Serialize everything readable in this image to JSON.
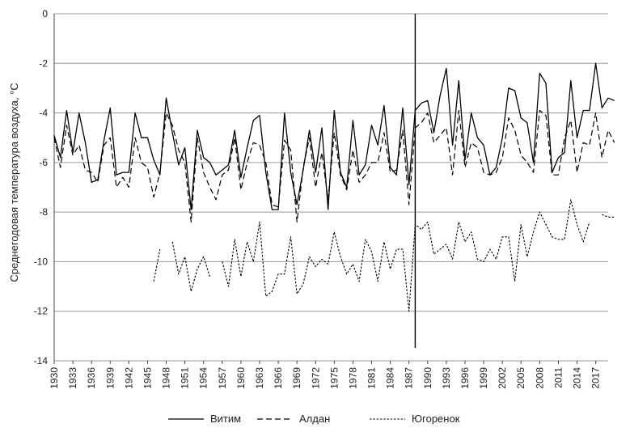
{
  "chart_data": {
    "type": "line",
    "title": "",
    "xlabel": "",
    "ylabel": "Среднегодовая температура воздуха, °С",
    "ylim": [
      -14,
      0
    ],
    "yticks": [
      0,
      -2,
      -4,
      -6,
      -8,
      -10,
      -12,
      -14
    ],
    "xticks": [
      1930,
      1933,
      1936,
      1939,
      1942,
      1945,
      1948,
      1951,
      1954,
      1957,
      1960,
      1963,
      1966,
      1969,
      1972,
      1975,
      1978,
      1981,
      1984,
      1987,
      1990,
      1993,
      1996,
      1999,
      2002,
      2005,
      2008,
      2011,
      2014,
      2017
    ],
    "xlim": [
      1930,
      2019
    ],
    "grid": "horizontal",
    "legend_position": "bottom",
    "reference_line_x": 1988,
    "x_start": 1930,
    "series": [
      {
        "name": "Витим",
        "style": "solid",
        "values": [
          -4.9,
          -5.8,
          -3.9,
          -5.6,
          -4.0,
          -5.2,
          -6.8,
          -6.7,
          -5.1,
          -3.8,
          -6.5,
          -6.4,
          -6.4,
          -4.0,
          -5.0,
          -5.0,
          -5.9,
          -6.5,
          -3.4,
          -4.8,
          -6.1,
          -5.4,
          -7.9,
          -4.7,
          -5.8,
          -6.0,
          -6.5,
          -6.3,
          -6.1,
          -4.7,
          -6.6,
          -5.4,
          -4.3,
          -4.1,
          -6.4,
          -7.9,
          -7.9,
          -4.0,
          -6.4,
          -7.7,
          -6.3,
          -4.7,
          -6.4,
          -4.6,
          -7.9,
          -3.9,
          -6.4,
          -7.0,
          -4.3,
          -6.5,
          -6.1,
          -4.5,
          -5.3,
          -3.7,
          -6.2,
          -6.5,
          -3.8,
          -6.9,
          -3.9,
          -3.6,
          -3.5,
          -4.8,
          -3.3,
          -2.2,
          -5.3,
          -2.7,
          -5.9,
          -4.0,
          -5.0,
          -5.3,
          -6.5,
          -6.2,
          -5.0,
          -3.0,
          -3.1,
          -4.2,
          -4.4,
          -6.0,
          -2.4,
          -2.8,
          -6.4,
          -5.8,
          -5.6,
          -2.7,
          -5.0,
          -3.9,
          -3.9,
          -2.0,
          -3.8,
          -3.4,
          -3.5
        ]
      },
      {
        "name": "Алдан",
        "style": "dashed",
        "values": [
          -5.0,
          -6.2,
          -4.5,
          -5.7,
          -5.3,
          -6.3,
          -6.4,
          -6.8,
          -5.3,
          -5.0,
          -7.0,
          -6.6,
          -7.0,
          -5.0,
          -6.0,
          -6.2,
          -7.4,
          -6.4,
          -4.0,
          -4.5,
          -5.5,
          -6.0,
          -8.4,
          -5.0,
          -6.4,
          -7.0,
          -7.5,
          -6.5,
          -6.3,
          -5.0,
          -7.1,
          -6.0,
          -5.2,
          -5.3,
          -6.0,
          -7.7,
          -7.8,
          -5.1,
          -5.5,
          -8.4,
          -6.2,
          -5.0,
          -7.0,
          -5.6,
          -7.5,
          -4.8,
          -6.5,
          -7.1,
          -5.5,
          -6.8,
          -6.5,
          -6.0,
          -6.0,
          -4.8,
          -6.4,
          -6.3,
          -4.7,
          -7.7,
          -4.6,
          -4.4,
          -4.0,
          -5.2,
          -4.9,
          -4.6,
          -6.5,
          -3.9,
          -6.2,
          -5.2,
          -5.4,
          -6.4,
          -6.5,
          -6.4,
          -5.8,
          -4.2,
          -4.7,
          -5.7,
          -6.0,
          -6.4,
          -3.9,
          -4.1,
          -6.5,
          -6.5,
          -5.0,
          -4.3,
          -6.4,
          -5.2,
          -5.3,
          -4.0,
          -5.8,
          -4.7,
          -5.2
        ]
      },
      {
        "name": "Югоренок",
        "style": "dotted",
        "values": [
          null,
          null,
          null,
          null,
          null,
          null,
          null,
          null,
          null,
          null,
          null,
          null,
          null,
          null,
          null,
          null,
          -10.8,
          -9.5,
          null,
          -9.2,
          -10.5,
          -9.8,
          -11.2,
          -10.3,
          -9.8,
          -10.6,
          null,
          -10.0,
          -11.0,
          -9.1,
          -10.6,
          -9.2,
          -10.0,
          -8.4,
          -11.4,
          -11.2,
          -10.5,
          -10.5,
          -9.0,
          -11.3,
          -10.9,
          -9.8,
          -10.2,
          -9.9,
          -10.1,
          -8.8,
          -9.8,
          -10.5,
          -10.1,
          -10.8,
          -9.1,
          -9.6,
          -10.8,
          -9.2,
          -10.3,
          -9.5,
          -9.5,
          -12.0,
          -8.5,
          -8.7,
          -8.4,
          -9.7,
          -9.5,
          -9.3,
          -9.9,
          -8.4,
          -9.2,
          -8.8,
          -9.9,
          -10.0,
          -9.5,
          -9.9,
          -9.0,
          -9.0,
          -10.8,
          -8.5,
          -9.8,
          -8.8,
          -8.0,
          -8.5,
          -9.0,
          -9.1,
          -9.1,
          -7.5,
          -8.5,
          -9.2,
          -8.4,
          null,
          -8.1,
          -8.2,
          -8.2
        ]
      }
    ]
  }
}
